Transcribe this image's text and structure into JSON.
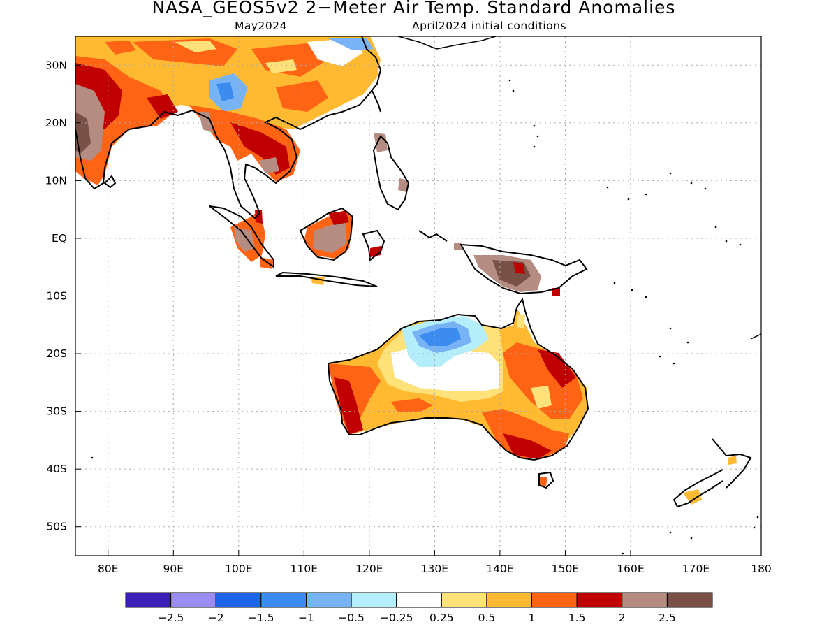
{
  "title": "NASA_GEOS5v2 2−Meter Air Temp. Standard Anomalies",
  "subtitle_left": "May2024",
  "subtitle_right": "April2024 initial conditions",
  "lat_labels": [
    "30N",
    "20N",
    "10N",
    "EQ",
    "10S",
    "20S",
    "30S",
    "40S",
    "50S"
  ],
  "lon_labels": [
    "80E",
    "90E",
    "100E",
    "110E",
    "120E",
    "130E",
    "140E",
    "150E",
    "160E",
    "170E",
    "180"
  ],
  "map_extent": {
    "lon_min": 75,
    "lon_max": 180,
    "lat_min": -55,
    "lat_max": 35
  },
  "legend": {
    "colors": [
      "#3b1fb8",
      "#9c8cf5",
      "#1e64e6",
      "#3c8cf0",
      "#78b4f5",
      "#b4eefa",
      "#ffffff",
      "#ffe17a",
      "#ffba32",
      "#ff6414",
      "#c00000",
      "#b48c82",
      "#785046"
    ],
    "labels": [
      "−2.5",
      "−2",
      "−1.5",
      "−1",
      "−0.5",
      "−0.25",
      "0.25",
      "0.5",
      "1",
      "1.5",
      "2",
      "2.5"
    ]
  }
}
